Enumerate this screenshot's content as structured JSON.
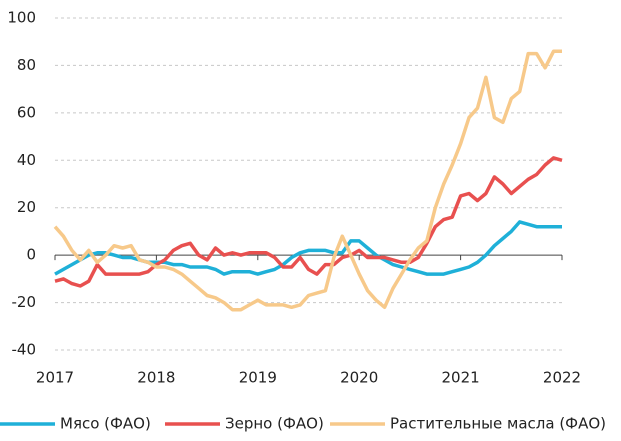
{
  "chart_data": {
    "type": "line",
    "x": [
      2017,
      2017.083,
      2017.167,
      2017.25,
      2017.333,
      2017.417,
      2017.5,
      2017.583,
      2017.667,
      2017.75,
      2017.833,
      2017.917,
      2018,
      2018.083,
      2018.167,
      2018.25,
      2018.333,
      2018.417,
      2018.5,
      2018.583,
      2018.667,
      2018.75,
      2018.833,
      2018.917,
      2019,
      2019.083,
      2019.167,
      2019.25,
      2019.333,
      2019.417,
      2019.5,
      2019.583,
      2019.667,
      2019.75,
      2019.833,
      2019.917,
      2020,
      2020.083,
      2020.167,
      2020.25,
      2020.333,
      2020.417,
      2020.5,
      2020.583,
      2020.667,
      2020.75,
      2020.833,
      2020.917,
      2021,
      2021.083,
      2021.167,
      2021.25,
      2021.333,
      2021.417,
      2021.5,
      2021.583,
      2021.667,
      2021.75,
      2021.833,
      2021.917,
      2022
    ],
    "series": [
      {
        "name": "Мясо (ФАО)",
        "color": "#1fb0d8",
        "values": [
          -8,
          -6,
          -4,
          -2,
          0,
          1,
          1,
          0,
          -1,
          -1,
          -2,
          -3,
          -3,
          -3,
          -4,
          -4,
          -5,
          -5,
          -5,
          -6,
          -8,
          -7,
          -7,
          -7,
          -8,
          -7,
          -6,
          -4,
          -1,
          1,
          2,
          2,
          2,
          1,
          1,
          6,
          6,
          3,
          0,
          -2,
          -4,
          -5,
          -6,
          -7,
          -8,
          -8,
          -8,
          -7,
          -6,
          -5,
          -3,
          0,
          4,
          7,
          10,
          14,
          13,
          12,
          12,
          12,
          12
        ]
      },
      {
        "name": "Зерно (ФАО)",
        "color": "#e8504f",
        "values": [
          -11,
          -10,
          -12,
          -13,
          -11,
          -4,
          -8,
          -8,
          -8,
          -8,
          -8,
          -7,
          -4,
          -2,
          2,
          4,
          5,
          0,
          -2,
          3,
          0,
          1,
          0,
          1,
          1,
          1,
          -1,
          -5,
          -5,
          -1,
          -6,
          -8,
          -4,
          -4,
          -1,
          0,
          2,
          -1,
          -1,
          -1,
          -2,
          -3,
          -3,
          -1,
          5,
          12,
          15,
          16,
          25,
          26,
          23,
          26,
          33,
          30,
          26,
          29,
          32,
          34,
          38,
          41,
          40
        ]
      },
      {
        "name": "Растительные масла (ФАО)",
        "color": "#f7c98a",
        "values": [
          12,
          8,
          2,
          -2,
          2,
          -3,
          0,
          4,
          3,
          4,
          -2,
          -3,
          -5,
          -5,
          -6,
          -8,
          -11,
          -14,
          -17,
          -18,
          -20,
          -23,
          -23,
          -21,
          -19,
          -21,
          -21,
          -21,
          -22,
          -21,
          -17,
          -16,
          -15,
          -1,
          8,
          0,
          -8,
          -15,
          -19,
          -22,
          -14,
          -8,
          -2,
          3,
          6,
          20,
          30,
          38,
          47,
          58,
          62,
          75,
          58,
          56,
          66,
          69,
          85,
          85,
          79,
          86,
          86
        ]
      }
    ],
    "xlim": [
      2017,
      2022
    ],
    "xticks": [
      2017,
      2018,
      2019,
      2020,
      2021,
      2022
    ],
    "ylim": [
      -40,
      100
    ],
    "yticks": [
      -40,
      -20,
      0,
      20,
      40,
      60,
      80,
      100
    ],
    "grid": true,
    "legend": "bottom"
  }
}
